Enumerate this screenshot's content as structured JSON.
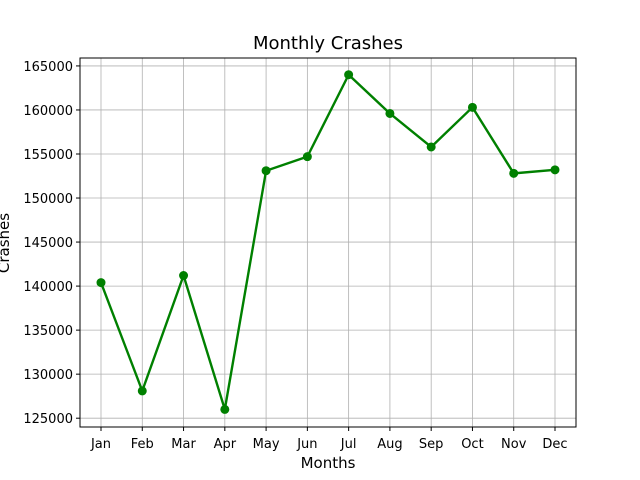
{
  "chart_data": {
    "type": "line",
    "title": "Monthly Crashes",
    "xlabel": "Months",
    "ylabel": "Crashes",
    "categories": [
      "Jan",
      "Feb",
      "Mar",
      "Apr",
      "May",
      "Jun",
      "Jul",
      "Aug",
      "Sep",
      "Oct",
      "Nov",
      "Dec"
    ],
    "series": [
      {
        "values": [
          140400,
          128100,
          141200,
          126000,
          153100,
          154700,
          164000,
          159600,
          155800,
          160300,
          152800,
          153200
        ],
        "color": "#008000",
        "marker": "circle"
      }
    ],
    "ylim": [
      124000,
      165900
    ],
    "yticks": [
      125000,
      130000,
      135000,
      140000,
      145000,
      150000,
      155000,
      160000,
      165000
    ],
    "ytick_labels": [
      "125000",
      "130000",
      "135000",
      "140000",
      "145000",
      "150000",
      "155000",
      "160000",
      "165000"
    ],
    "grid": true,
    "legend": "none"
  }
}
